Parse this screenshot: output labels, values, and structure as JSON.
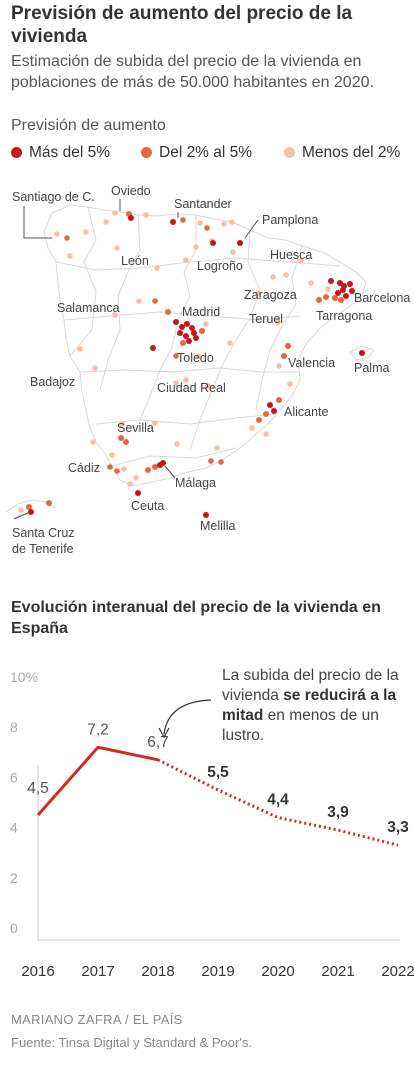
{
  "header": {
    "title": "Previsión de aumento del precio de la vivienda",
    "subtitle": "Estimación de subida del precio de la vivienda en poblaciones de más de 50.000 habitantes en 2020."
  },
  "legend": {
    "title": "Previsión de aumento",
    "items": [
      {
        "label": "Más del 5%",
        "color": "#c8151b"
      },
      {
        "label": "Del 2% al 5%",
        "color": "#e8663f"
      },
      {
        "label": "Menos del 2%",
        "color": "#f7bfa4"
      }
    ]
  },
  "map": {
    "city_labels": [
      "Santiago de C.",
      "Oviedo",
      "Santander",
      "Pamplona",
      "León",
      "Huesca",
      "Logroño",
      "Barcelona",
      "Zaragoza",
      "Salamanca",
      "Madrid",
      "Tarragona",
      "Teruel",
      "Toledo",
      "Valencia",
      "Palma",
      "Badajoz",
      "Ciudad Real",
      "Alicante",
      "Sevilla",
      "Cádiz",
      "Málaga",
      "Ceuta",
      "Santa Cruz",
      "de Tenerife",
      "Melilla"
    ]
  },
  "chart_title": "Evolución interanual del precio de la vivienda en España",
  "annotation": {
    "before": "La subida del precio de la vivienda ",
    "bold": "se reducirá a la mitad",
    "after": " en menos de un lustro."
  },
  "chart_data": {
    "type": "line",
    "title": "Evolución interanual del precio de la vivienda en España",
    "x": [
      "2016",
      "2017",
      "2018",
      "2019",
      "2020",
      "2021",
      "2022"
    ],
    "series": [
      {
        "values": [
          4.5,
          7.2,
          6.7,
          5.5,
          4.4,
          3.9,
          3.3
        ],
        "color": "#d52b1e"
      }
    ],
    "value_labels": [
      "4,5",
      "7,2",
      "6,7",
      "5,5",
      "4,4",
      "3,9",
      "3,3"
    ],
    "solid_until": "2018",
    "forecast_from": "2018",
    "y_ticks": [
      "0",
      "2",
      "4",
      "6",
      "8",
      "10%"
    ],
    "ylim": [
      0,
      10
    ],
    "grid": false
  },
  "footer": {
    "credit": "MARIANO ZAFRA / EL PAÍS",
    "source": "Fuente: Tinsa Digital y Standard & Poor's."
  }
}
